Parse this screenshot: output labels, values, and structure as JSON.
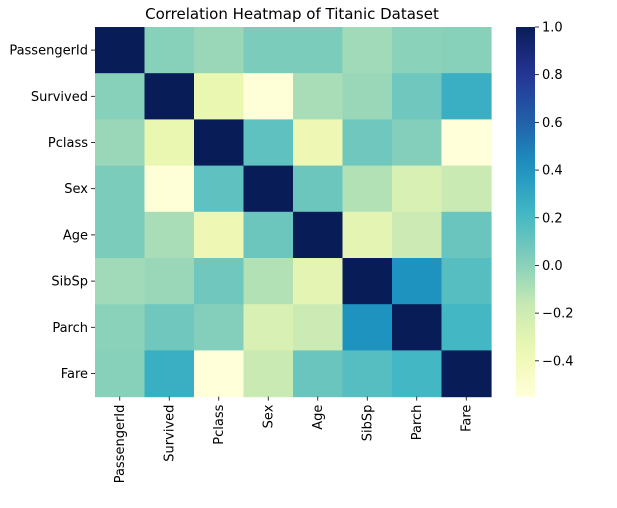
{
  "chart_data": {
    "type": "heatmap",
    "title": "Correlation Heatmap of Titanic Dataset",
    "xlabel": "",
    "ylabel": "",
    "rows": [
      "PassengerId",
      "Survived",
      "Pclass",
      "Sex",
      "Age",
      "SibSp",
      "Parch",
      "Fare"
    ],
    "columns": [
      "PassengerId",
      "Survived",
      "Pclass",
      "Sex",
      "Age",
      "SibSp",
      "Parch",
      "Fare"
    ],
    "values": [
      [
        1.0,
        0.01,
        -0.04,
        0.04,
        0.04,
        -0.06,
        -0.0,
        0.01
      ],
      [
        0.01,
        1.0,
        -0.34,
        -0.54,
        -0.08,
        -0.04,
        0.08,
        0.26
      ],
      [
        -0.04,
        -0.34,
        1.0,
        0.13,
        -0.37,
        0.08,
        0.02,
        -0.55
      ],
      [
        0.04,
        -0.54,
        0.13,
        1.0,
        0.09,
        -0.11,
        -0.25,
        -0.18
      ],
      [
        0.04,
        -0.08,
        -0.37,
        0.09,
        1.0,
        -0.31,
        -0.19,
        0.1
      ],
      [
        -0.06,
        -0.04,
        0.08,
        -0.11,
        -0.31,
        1.0,
        0.41,
        0.16
      ],
      [
        -0.0,
        0.08,
        0.02,
        -0.25,
        -0.19,
        0.41,
        1.0,
        0.22
      ],
      [
        0.01,
        0.26,
        -0.55,
        -0.18,
        0.1,
        0.16,
        0.22,
        1.0
      ]
    ],
    "colormap": "YlGnBu",
    "vmin": -0.55,
    "vmax": 1.0,
    "colorbar": {
      "ticks": [
        1.0,
        0.8,
        0.6,
        0.4,
        0.2,
        0.0,
        -0.2,
        -0.4
      ],
      "tick_labels": [
        "1.0",
        "0.8",
        "0.6",
        "0.4",
        "0.2",
        "0.0",
        "−0.2",
        "−0.4"
      ]
    },
    "grid": false,
    "colorbar_placement": "right"
  }
}
